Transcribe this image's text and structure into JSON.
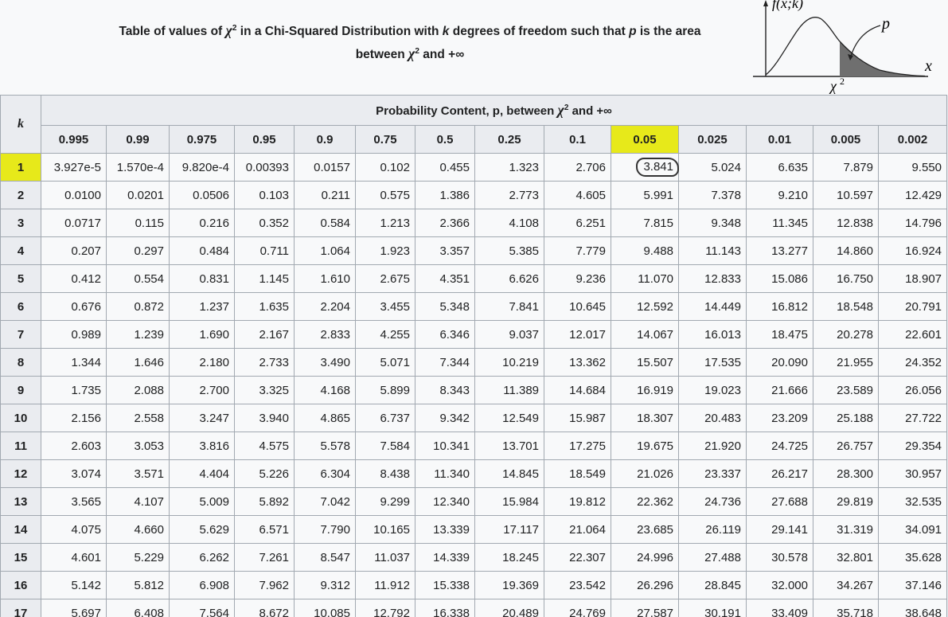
{
  "title": {
    "line1_before": "Table of values of ",
    "chi": "χ",
    "sup": "2",
    "line1_after": " in a Chi-Squared Distribution with ",
    "k": "k",
    "line1_mid": " degrees of freedom such that ",
    "p": "p",
    "line1_end": " is the area",
    "line2_before": "between ",
    "line2_after": " and +∞"
  },
  "graph": {
    "fx_label": "f(x;k)",
    "p_label": "p",
    "x_label": "x",
    "chi_label": "χ",
    "chi_sup": "2"
  },
  "table": {
    "corner": "k",
    "probability_header_before": "Probability Content, p, between ",
    "probability_header_after": " and +∞",
    "p_values": [
      "0.995",
      "0.99",
      "0.975",
      "0.95",
      "0.9",
      "0.75",
      "0.5",
      "0.25",
      "0.1",
      "0.05",
      "0.025",
      "0.01",
      "0.005",
      "0.002"
    ],
    "highlighted_column": 9,
    "highlighted_row": 0,
    "circled_cell": [
      0,
      9
    ],
    "rows": [
      {
        "k": "1",
        "values": [
          "3.927e-5",
          "1.570e-4",
          "9.820e-4",
          "0.00393",
          "0.0157",
          "0.102",
          "0.455",
          "1.323",
          "2.706",
          "3.841",
          "5.024",
          "6.635",
          "7.879",
          "9.550"
        ]
      },
      {
        "k": "2",
        "values": [
          "0.0100",
          "0.0201",
          "0.0506",
          "0.103",
          "0.211",
          "0.575",
          "1.386",
          "2.773",
          "4.605",
          "5.991",
          "7.378",
          "9.210",
          "10.597",
          "12.429"
        ]
      },
      {
        "k": "3",
        "values": [
          "0.0717",
          "0.115",
          "0.216",
          "0.352",
          "0.584",
          "1.213",
          "2.366",
          "4.108",
          "6.251",
          "7.815",
          "9.348",
          "11.345",
          "12.838",
          "14.796"
        ]
      },
      {
        "k": "4",
        "values": [
          "0.207",
          "0.297",
          "0.484",
          "0.711",
          "1.064",
          "1.923",
          "3.357",
          "5.385",
          "7.779",
          "9.488",
          "11.143",
          "13.277",
          "14.860",
          "16.924"
        ]
      },
      {
        "k": "5",
        "values": [
          "0.412",
          "0.554",
          "0.831",
          "1.145",
          "1.610",
          "2.675",
          "4.351",
          "6.626",
          "9.236",
          "11.070",
          "12.833",
          "15.086",
          "16.750",
          "18.907"
        ]
      },
      {
        "k": "6",
        "values": [
          "0.676",
          "0.872",
          "1.237",
          "1.635",
          "2.204",
          "3.455",
          "5.348",
          "7.841",
          "10.645",
          "12.592",
          "14.449",
          "16.812",
          "18.548",
          "20.791"
        ]
      },
      {
        "k": "7",
        "values": [
          "0.989",
          "1.239",
          "1.690",
          "2.167",
          "2.833",
          "4.255",
          "6.346",
          "9.037",
          "12.017",
          "14.067",
          "16.013",
          "18.475",
          "20.278",
          "22.601"
        ]
      },
      {
        "k": "8",
        "values": [
          "1.344",
          "1.646",
          "2.180",
          "2.733",
          "3.490",
          "5.071",
          "7.344",
          "10.219",
          "13.362",
          "15.507",
          "17.535",
          "20.090",
          "21.955",
          "24.352"
        ]
      },
      {
        "k": "9",
        "values": [
          "1.735",
          "2.088",
          "2.700",
          "3.325",
          "4.168",
          "5.899",
          "8.343",
          "11.389",
          "14.684",
          "16.919",
          "19.023",
          "21.666",
          "23.589",
          "26.056"
        ]
      },
      {
        "k": "10",
        "values": [
          "2.156",
          "2.558",
          "3.247",
          "3.940",
          "4.865",
          "6.737",
          "9.342",
          "12.549",
          "15.987",
          "18.307",
          "20.483",
          "23.209",
          "25.188",
          "27.722"
        ]
      },
      {
        "k": "11",
        "values": [
          "2.603",
          "3.053",
          "3.816",
          "4.575",
          "5.578",
          "7.584",
          "10.341",
          "13.701",
          "17.275",
          "19.675",
          "21.920",
          "24.725",
          "26.757",
          "29.354"
        ]
      },
      {
        "k": "12",
        "values": [
          "3.074",
          "3.571",
          "4.404",
          "5.226",
          "6.304",
          "8.438",
          "11.340",
          "14.845",
          "18.549",
          "21.026",
          "23.337",
          "26.217",
          "28.300",
          "30.957"
        ]
      },
      {
        "k": "13",
        "values": [
          "3.565",
          "4.107",
          "5.009",
          "5.892",
          "7.042",
          "9.299",
          "12.340",
          "15.984",
          "19.812",
          "22.362",
          "24.736",
          "27.688",
          "29.819",
          "32.535"
        ]
      },
      {
        "k": "14",
        "values": [
          "4.075",
          "4.660",
          "5.629",
          "6.571",
          "7.790",
          "10.165",
          "13.339",
          "17.117",
          "21.064",
          "23.685",
          "26.119",
          "29.141",
          "31.319",
          "34.091"
        ]
      },
      {
        "k": "15",
        "values": [
          "4.601",
          "5.229",
          "6.262",
          "7.261",
          "8.547",
          "11.037",
          "14.339",
          "18.245",
          "22.307",
          "24.996",
          "27.488",
          "30.578",
          "32.801",
          "35.628"
        ]
      },
      {
        "k": "16",
        "values": [
          "5.142",
          "5.812",
          "6.908",
          "7.962",
          "9.312",
          "11.912",
          "15.338",
          "19.369",
          "23.542",
          "26.296",
          "28.845",
          "32.000",
          "34.267",
          "37.146"
        ]
      },
      {
        "k": "17",
        "values": [
          "5.697",
          "6.408",
          "7.564",
          "8.672",
          "10.085",
          "12.792",
          "16.338",
          "20.489",
          "24.769",
          "27.587",
          "30.191",
          "33.409",
          "35.718",
          "38.648"
        ]
      }
    ]
  }
}
